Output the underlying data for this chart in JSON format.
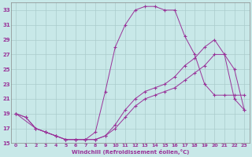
{
  "background_color": "#c8e8e8",
  "line_color": "#993399",
  "grid_color": "#aacccc",
  "xlabel": "Windchill (Refroidissement éolien,°C)",
  "xlim": [
    -0.5,
    23.5
  ],
  "ylim": [
    15,
    34
  ],
  "yticks": [
    15,
    17,
    19,
    21,
    23,
    25,
    27,
    29,
    31,
    33
  ],
  "xticks": [
    0,
    1,
    2,
    3,
    4,
    5,
    6,
    7,
    8,
    9,
    10,
    11,
    12,
    13,
    14,
    15,
    16,
    17,
    18,
    19,
    20,
    21,
    22,
    23
  ],
  "curve1_x": [
    0,
    1,
    2,
    3,
    4,
    5,
    6,
    7,
    8,
    9,
    10,
    11,
    12,
    13,
    14,
    15,
    16,
    17,
    18,
    19,
    20,
    21,
    22,
    23
  ],
  "curve1_y": [
    19,
    18.5,
    17,
    16.5,
    16,
    15.5,
    15.5,
    15.5,
    15.5,
    16,
    17.5,
    19.5,
    21,
    22,
    22.5,
    23,
    24,
    25.5,
    26.5,
    28,
    29,
    27,
    25,
    19.5
  ],
  "curve2_x": [
    0,
    1,
    2,
    3,
    4,
    5,
    6,
    7,
    8,
    9,
    10,
    11,
    12,
    13,
    14,
    15,
    16,
    17,
    18,
    19,
    20,
    21,
    22,
    23
  ],
  "curve2_y": [
    19,
    18.5,
    17,
    16.5,
    16,
    15.5,
    15.5,
    15.5,
    16.5,
    22,
    28,
    31,
    33,
    33.5,
    33.5,
    33,
    33,
    29.5,
    27,
    23,
    21.5,
    21.5,
    21.5,
    21.5
  ],
  "curve3_x": [
    0,
    2,
    3,
    4,
    5,
    6,
    7,
    8,
    9,
    10,
    11,
    12,
    13,
    14,
    15,
    16,
    17,
    18,
    19,
    20,
    21,
    22,
    23
  ],
  "curve3_y": [
    19,
    17,
    16.5,
    16,
    15.5,
    15.5,
    15.5,
    15.5,
    16,
    17,
    18.5,
    20,
    21,
    21.5,
    22,
    22.5,
    23.5,
    24.5,
    25.5,
    27,
    27,
    21,
    19.5
  ]
}
